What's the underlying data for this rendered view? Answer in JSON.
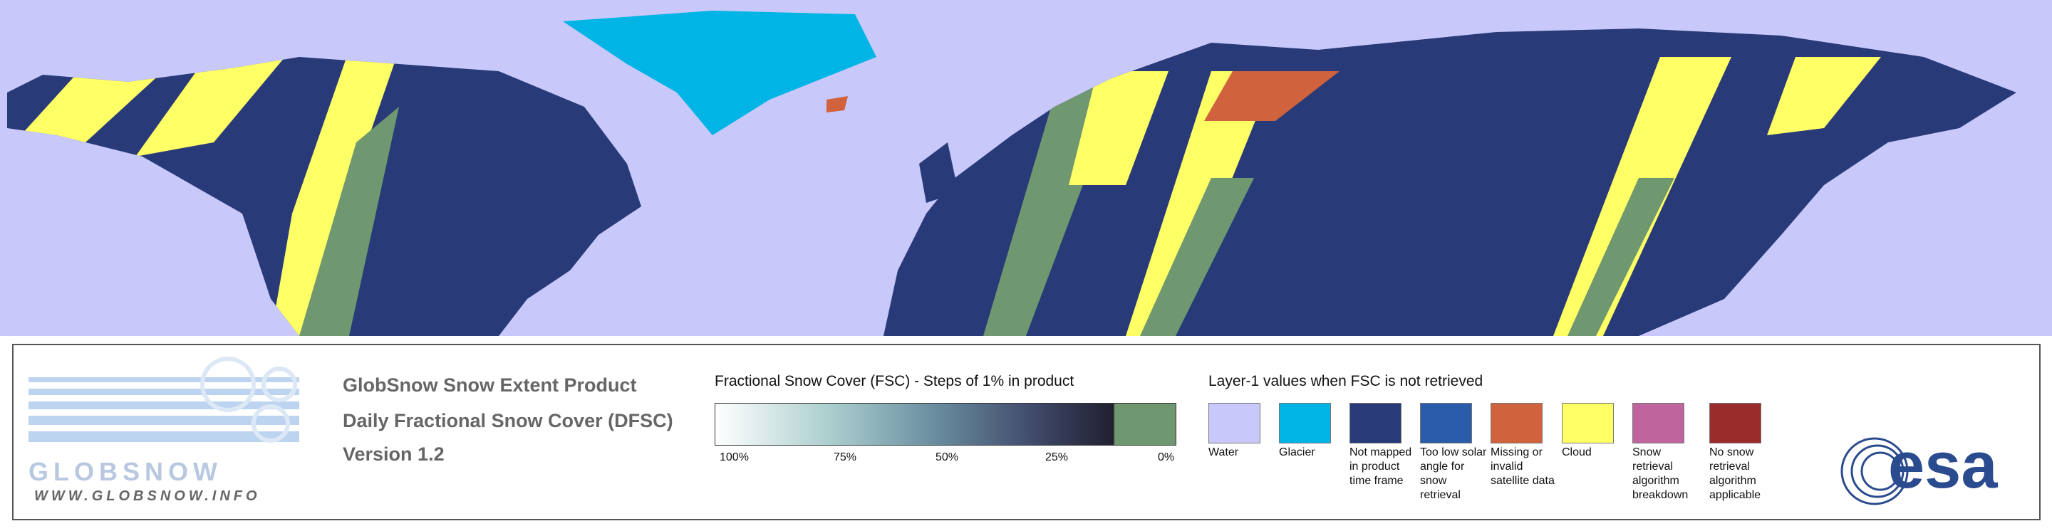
{
  "legend_panel": {
    "logo": {
      "name": "GLOBSNOW",
      "url": "WWW.GLOBSNOW.INFO"
    },
    "product": {
      "lines": [
        "GlobSnow Snow Extent Product",
        "Daily Fractional Snow Cover (DFSC)",
        "Version 1.2"
      ]
    },
    "fsc_scale": {
      "title": "Fractional Snow Cover (FSC) - Steps of 1% in product",
      "labels": [
        "100%",
        "75%",
        "50%",
        "25%",
        "0%"
      ]
    },
    "layer1": {
      "title": "Layer-1 values when FSC is not retrieved",
      "items": [
        {
          "color": "#c8c8fa",
          "label": "Water"
        },
        {
          "color": "#00b4e6",
          "label": "Glacier"
        },
        {
          "color": "#283a78",
          "label": "Not mapped in product time frame"
        },
        {
          "color": "#2a5caa",
          "label": "Too low solar angle for snow retrieval"
        },
        {
          "color": "#d0623e",
          "label": "Missing or invalid satellite data"
        },
        {
          "color": "#ffff66",
          "label": "Cloud"
        },
        {
          "color": "#c0649e",
          "label": "Snow retrieval algorithm breakdown"
        },
        {
          "color": "#9a2c2c",
          "label": "No snow retrieval algorithm applicable"
        }
      ]
    },
    "esa_logo": "esa"
  }
}
